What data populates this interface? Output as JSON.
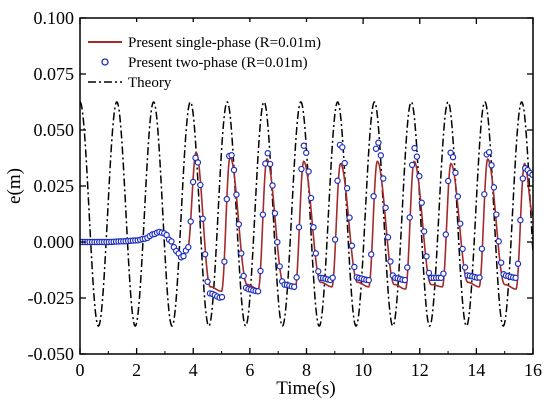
{
  "chart_data": {
    "type": "line",
    "title": "",
    "xlabel": "Time(s)",
    "ylabel": "e(m)",
    "xlim": [
      0,
      16
    ],
    "ylim": [
      -0.05,
      0.1
    ],
    "x_ticks": [
      0,
      2,
      4,
      6,
      8,
      10,
      12,
      14,
      16
    ],
    "x_tick_labels": [
      "0",
      "2",
      "4",
      "6",
      "8",
      "10",
      "12",
      "14",
      "16"
    ],
    "y_ticks": [
      -0.05,
      -0.025,
      0,
      0.025,
      0.05,
      0.075,
      0.1
    ],
    "y_tick_labels": [
      "-0.050",
      "-0.025",
      "0.000",
      "0.025",
      "0.050",
      "0.075",
      "0.100"
    ],
    "grid": false,
    "legend_position": "top-left",
    "colors": {
      "single_phase": "#a52a2a",
      "two_phase": "#1f2fbf",
      "theory": "#000000"
    },
    "series": [
      {
        "name": "Present single-phase (R=0.01m)",
        "style": "solid",
        "x": [
          0,
          0.5,
          1.0,
          1.5,
          2.0,
          2.3,
          2.6,
          2.8,
          3.0,
          3.2,
          3.4,
          3.6,
          3.8,
          4.1,
          4.6,
          5.0,
          5.3,
          5.9,
          6.3,
          6.6,
          7.2,
          7.6,
          7.9,
          8.5,
          8.9,
          9.2,
          9.8,
          10.2,
          10.5,
          11.1,
          11.5,
          11.8,
          12.4,
          12.8,
          13.1,
          13.7,
          14.1,
          14.4,
          15.0,
          15.4,
          15.7,
          16.0
        ],
        "y": [
          0,
          0,
          0,
          0.0003,
          0.0007,
          0.0015,
          0.0035,
          0.0045,
          0.0038,
          0.0005,
          -0.004,
          -0.007,
          -0.003,
          0.04,
          -0.02,
          -0.022,
          0.038,
          -0.019,
          -0.021,
          0.037,
          -0.019,
          -0.021,
          0.036,
          -0.018,
          -0.02,
          0.035,
          -0.018,
          -0.02,
          0.036,
          -0.019,
          -0.021,
          0.036,
          -0.019,
          -0.02,
          0.035,
          -0.018,
          -0.02,
          0.037,
          -0.019,
          -0.021,
          0.035,
          0.012
        ]
      },
      {
        "name": "Present two-phase (R=0.01m)",
        "style": "circles",
        "x": [
          0,
          0.5,
          1.0,
          1.5,
          2.0,
          2.3,
          2.6,
          2.8,
          3.0,
          3.2,
          3.4,
          3.6,
          3.8,
          4.1,
          4.6,
          5.0,
          5.3,
          5.9,
          6.3,
          6.6,
          7.2,
          7.6,
          7.9,
          8.5,
          8.9,
          9.2,
          9.8,
          10.2,
          10.5,
          11.1,
          11.5,
          11.8,
          12.4,
          12.8,
          13.1,
          13.7,
          14.1,
          14.4,
          15.0,
          15.4,
          15.7,
          16.0
        ],
        "y": [
          0,
          0,
          0,
          0.0003,
          0.0007,
          0.0015,
          0.0035,
          0.0045,
          0.0038,
          0.0005,
          -0.004,
          -0.007,
          -0.003,
          0.038,
          -0.023,
          -0.025,
          0.04,
          -0.021,
          -0.022,
          0.04,
          -0.019,
          -0.02,
          0.043,
          -0.016,
          -0.017,
          0.044,
          -0.016,
          -0.017,
          0.045,
          -0.016,
          -0.017,
          0.042,
          -0.016,
          -0.016,
          0.04,
          -0.015,
          -0.016,
          0.041,
          -0.015,
          -0.016,
          0.033,
          0.03
        ]
      },
      {
        "name": "Theory",
        "style": "dash-dot",
        "function": "0.0125 + 0.05*cos(2*pi*(t - 0.0)/1.3)",
        "x_range": [
          0,
          16
        ],
        "y_max": 0.0625,
        "y_min": -0.0375,
        "period": 1.3
      }
    ]
  }
}
